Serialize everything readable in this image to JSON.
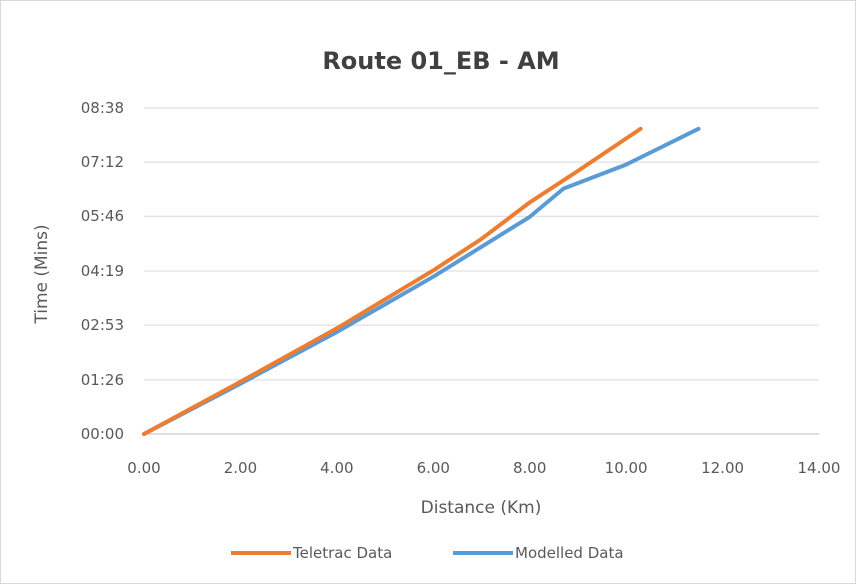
{
  "chart_data": {
    "type": "line",
    "title": "Route 01_EB - AM",
    "xlabel": "Distance (Km)",
    "ylabel": "Time (Mins)",
    "xlim": [
      0,
      14
    ],
    "ylim": [
      0,
      518
    ],
    "x_ticks": [
      "0.00",
      "2.00",
      "4.00",
      "6.00",
      "8.00",
      "10.00",
      "12.00",
      "14.00"
    ],
    "y_ticks": [
      "00:00",
      "01:26",
      "02:53",
      "04:19",
      "05:46",
      "07:12",
      "08:38"
    ],
    "y_tick_values": [
      0,
      86,
      173,
      259,
      346,
      432,
      518
    ],
    "grid": "horizontal",
    "legend_position": "bottom",
    "series": [
      {
        "name": "Teletrac Data",
        "color": "#ED7D31",
        "points": [
          [
            0,
            0
          ],
          [
            2,
            83
          ],
          [
            4,
            168
          ],
          [
            6,
            260
          ],
          [
            7,
            310
          ],
          [
            8,
            368
          ],
          [
            9,
            418
          ],
          [
            10.3,
            485
          ]
        ]
      },
      {
        "name": "Modelled Data",
        "color": "#5B9BD5",
        "points": [
          [
            0,
            0
          ],
          [
            2,
            80
          ],
          [
            4,
            162
          ],
          [
            6,
            250
          ],
          [
            8,
            345
          ],
          [
            8.7,
            390
          ],
          [
            10,
            428
          ],
          [
            11.5,
            485
          ]
        ]
      }
    ]
  }
}
